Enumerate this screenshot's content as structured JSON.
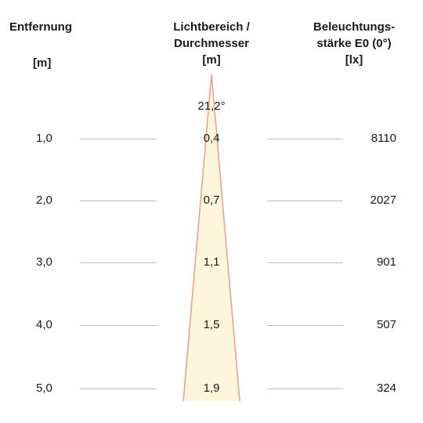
{
  "headers": {
    "distance": "Entfernung",
    "distance_unit": "[m]",
    "beam_line1": "Lichtbereich /",
    "beam_line2": "Durchmesser",
    "beam_unit": "[m]",
    "illum_line1": "Beleuchtungs-",
    "illum_line2": "stärke E0 (0°)",
    "illum_unit": "[lx]"
  },
  "beam_angle": "21,2°",
  "colors": {
    "beam_fill": "#fdf6dd",
    "beam_edge": "#e8a48e",
    "divider": "#bdbdbd"
  },
  "rows": [
    {
      "distance": "1,0",
      "diameter": "0,4",
      "illuminance": "8110"
    },
    {
      "distance": "2,0",
      "diameter": "0,7",
      "illuminance": "2027"
    },
    {
      "distance": "3,0",
      "diameter": "1,1",
      "illuminance": "901"
    },
    {
      "distance": "4,0",
      "diameter": "1,5",
      "illuminance": "507"
    },
    {
      "distance": "5,0",
      "diameter": "1,9",
      "illuminance": "324"
    }
  ]
}
